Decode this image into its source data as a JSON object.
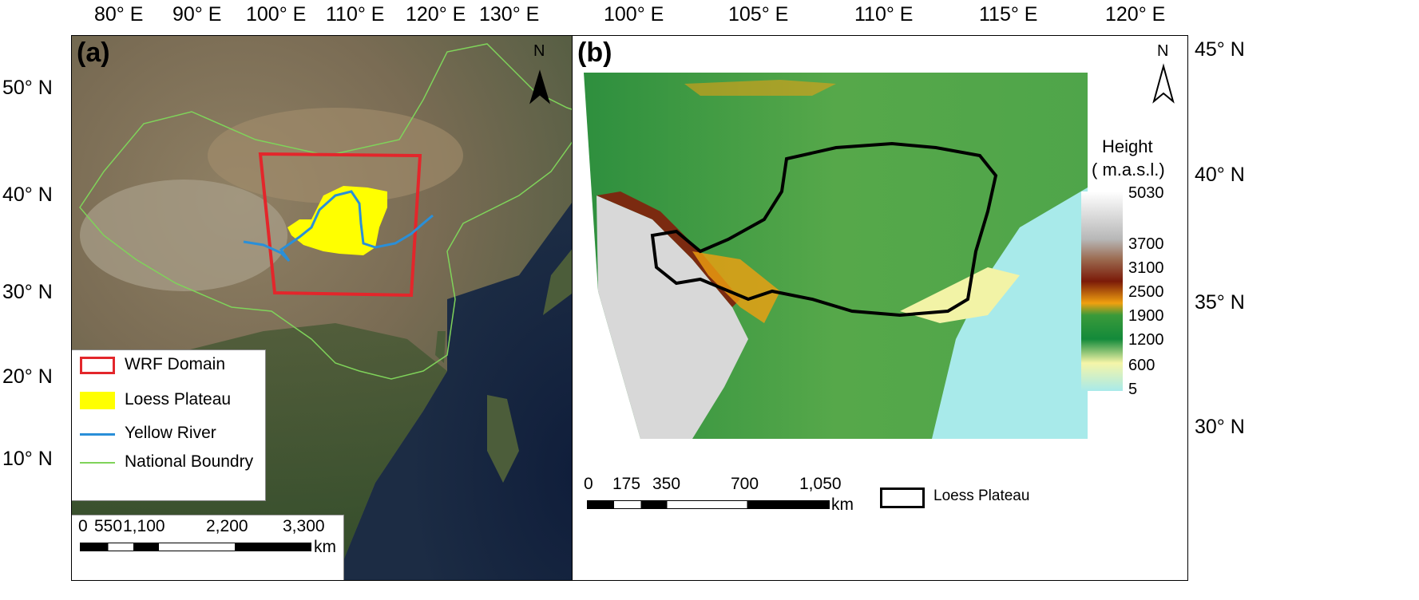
{
  "panel_a": {
    "label": "(a)",
    "north": "N",
    "lon_ticks": [
      "80° E",
      "90° E",
      "100° E",
      "110° E",
      "120° E",
      "130° E"
    ],
    "lat_ticks": [
      "50° N",
      "40° N",
      "30° N",
      "20° N",
      "10° N"
    ],
    "legend": {
      "items": [
        {
          "label": "WRF Domain",
          "color": "#e3262b"
        },
        {
          "label": "Loess Plateau",
          "color": "#ffff00"
        },
        {
          "label": "Yellow River",
          "color": "#2a8fd8"
        },
        {
          "label": "National Boundry",
          "color": "#7fd35a"
        }
      ]
    },
    "scale": {
      "ticks": [
        "0",
        "550",
        "1,100",
        "2,200",
        "3,300"
      ],
      "unit": "km"
    }
  },
  "panel_b": {
    "label": "(b)",
    "north": "N",
    "lon_ticks": [
      "100° E",
      "105° E",
      "110° E",
      "115° E",
      "120° E"
    ],
    "lat_ticks": [
      "45° N",
      "40° N",
      "35° N",
      "30° N"
    ],
    "colorbar": {
      "title": "Height",
      "unit": "( m.a.s.l.)",
      "ticks": [
        "5030",
        "3700",
        "3100",
        "2500",
        "1900",
        "1200",
        "600",
        "5"
      ]
    },
    "scale": {
      "ticks": [
        "0",
        "175",
        "350",
        "700",
        "1,050"
      ],
      "unit": "km"
    },
    "legend": {
      "label": "Loess Plateau"
    }
  }
}
